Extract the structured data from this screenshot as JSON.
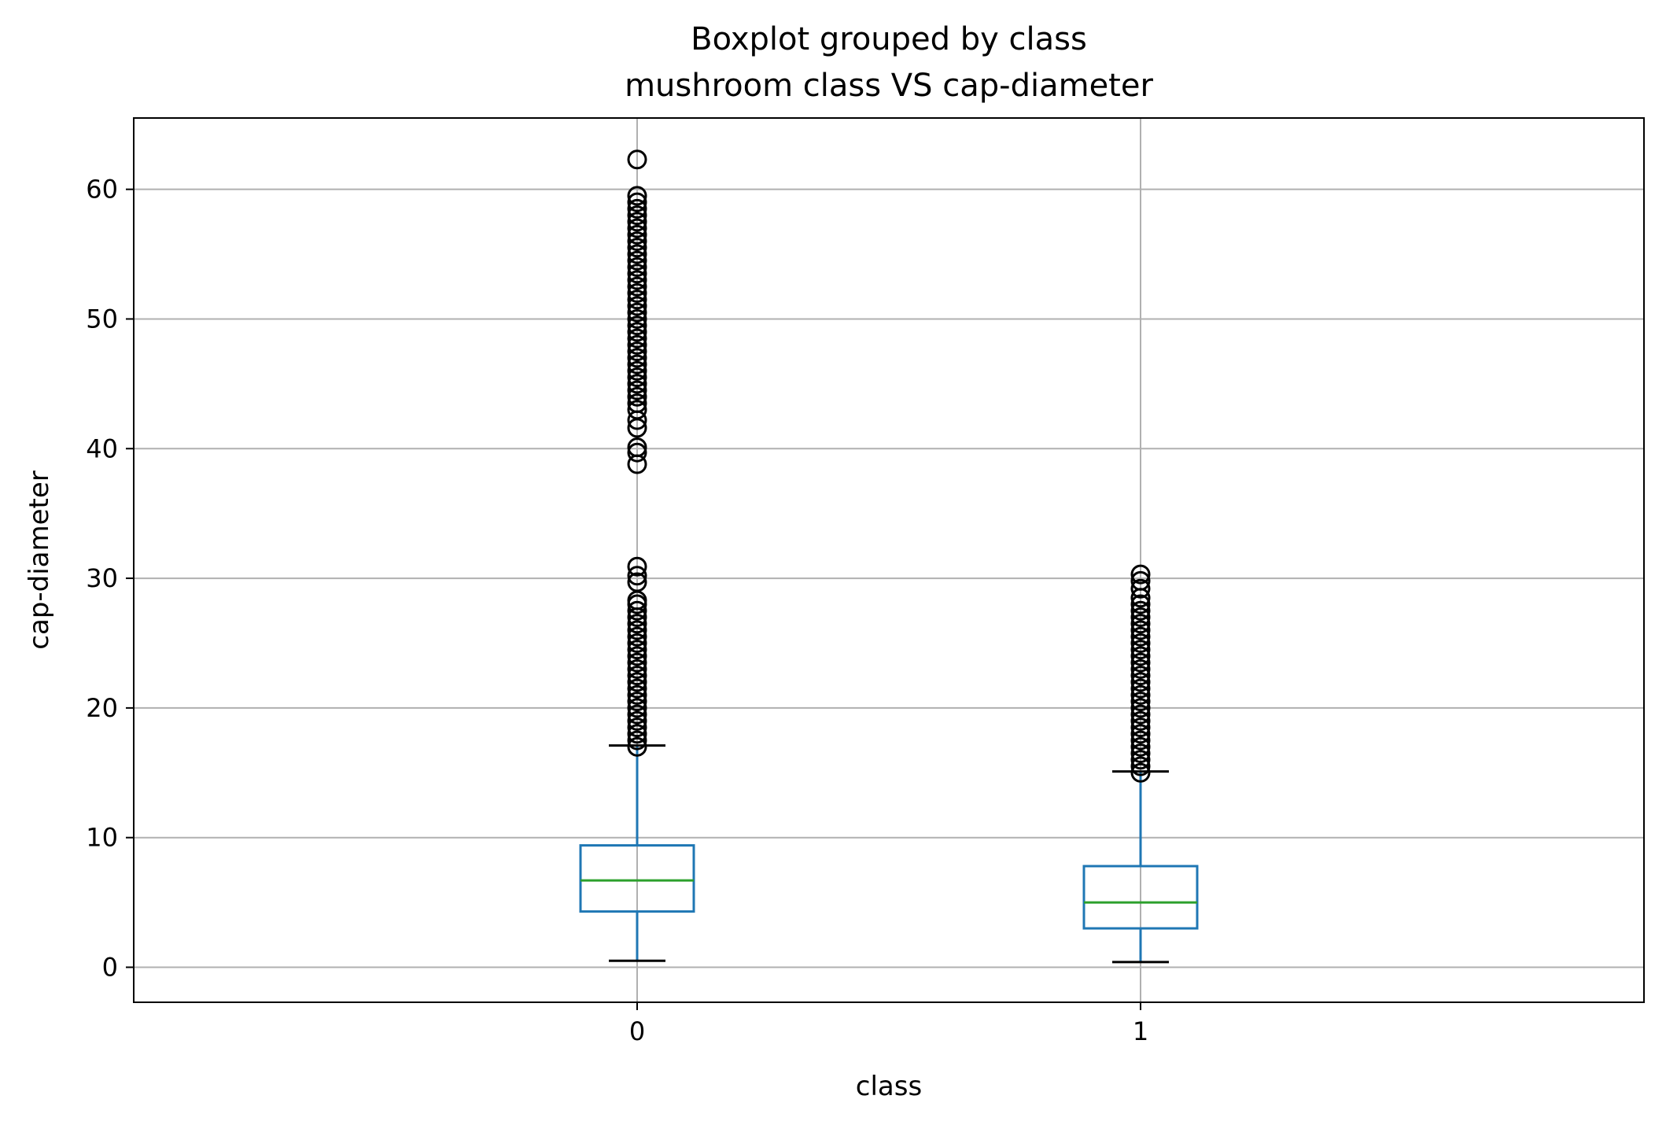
{
  "chart_data": {
    "type": "box",
    "title": "Boxplot grouped by class",
    "subtitle": "mushroom class VS cap-diameter",
    "xlabel": "class",
    "ylabel": "cap-diameter",
    "categories": [
      "0",
      "1"
    ],
    "ylim": [
      -2.7,
      65.5
    ],
    "yticks": [
      0,
      10,
      20,
      30,
      40,
      50,
      60
    ],
    "ytick_labels": [
      "0",
      "10",
      "20",
      "30",
      "40",
      "50",
      "60"
    ],
    "grid": true,
    "colors": {
      "box": "#1f77b4",
      "median": "#2ca02c",
      "whisker": "#1f77b4",
      "cap": "#000000",
      "flier": "#000000",
      "grid": "#b0b0b0"
    },
    "boxes": [
      {
        "category": "0",
        "whisker_low": 0.5,
        "q1": 4.3,
        "median": 6.7,
        "q3": 9.4,
        "whisker_high": 17.1,
        "fliers": [
          17.0,
          17.5,
          18.0,
          18.5,
          19.0,
          19.5,
          20.0,
          20.5,
          21.0,
          21.5,
          22.0,
          22.5,
          23.0,
          23.5,
          24.0,
          24.5,
          25.0,
          25.5,
          26.0,
          26.5,
          27.0,
          27.5,
          28.0,
          28.3,
          29.7,
          30.2,
          30.9,
          38.8,
          39.7,
          40.1,
          41.6,
          42.2,
          43.0,
          43.5,
          44.0,
          44.5,
          45.0,
          45.5,
          46.0,
          46.5,
          47.0,
          47.5,
          48.0,
          48.5,
          49.0,
          49.5,
          50.0,
          50.5,
          51.0,
          51.5,
          52.0,
          52.5,
          53.0,
          53.5,
          54.0,
          54.5,
          55.0,
          55.5,
          56.0,
          56.5,
          57.0,
          57.5,
          58.0,
          58.5,
          59.0,
          59.5,
          62.3
        ]
      },
      {
        "category": "1",
        "whisker_low": 0.4,
        "q1": 3.0,
        "median": 5.0,
        "q3": 7.8,
        "whisker_high": 15.1,
        "fliers": [
          15.0,
          15.5,
          16.0,
          16.5,
          17.0,
          17.5,
          18.0,
          18.5,
          19.0,
          19.5,
          20.0,
          20.5,
          21.0,
          21.5,
          22.0,
          22.5,
          23.0,
          23.5,
          24.0,
          24.5,
          25.0,
          25.5,
          26.0,
          26.5,
          27.0,
          27.5,
          28.0,
          28.5,
          29.2,
          29.8,
          30.3
        ]
      }
    ]
  }
}
